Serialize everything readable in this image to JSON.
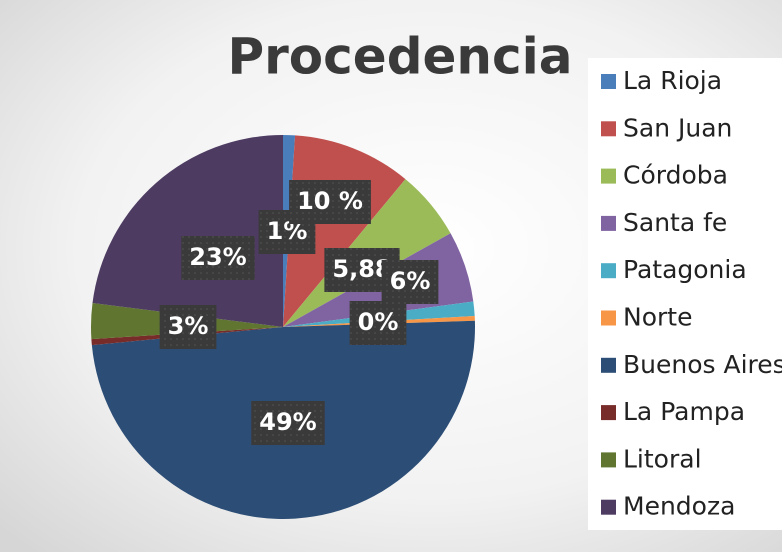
{
  "chart_data": {
    "type": "pie",
    "title": "Procedencia",
    "categories": [
      "La Rioja",
      "San Juan",
      "Córdoba",
      "Santa fe",
      "Patagonia",
      "Norte",
      "Buenos Aires",
      "La Pampa",
      "Litoral",
      "Mendoza"
    ],
    "values": [
      1,
      10,
      5.88,
      6,
      1.2,
      0.4,
      49,
      0.5,
      3,
      23
    ],
    "value_labels": [
      "1%",
      "10 %",
      "5,88",
      "6%",
      null,
      "0%",
      "49%",
      null,
      "3%",
      "23%"
    ],
    "colors": [
      "#4a7ebb",
      "#c0504d",
      "#9bbb59",
      "#8064a2",
      "#4bacc6",
      "#f79646",
      "#2c4d75",
      "#772c2a",
      "#5f7530",
      "#4d3b62"
    ]
  }
}
